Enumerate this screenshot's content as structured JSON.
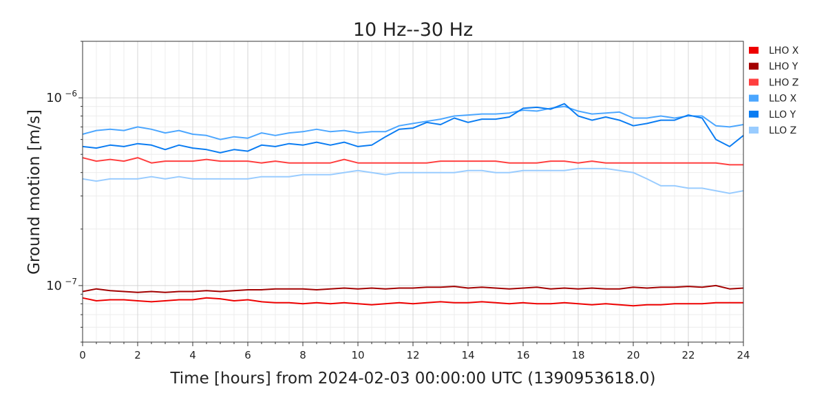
{
  "chart_data": {
    "type": "line",
    "title": "10 Hz--30 Hz",
    "xlabel": "Time [hours] from 2024-02-03 00:00:00 UTC (1390953618.0)",
    "ylabel": "Ground motion [m/s]",
    "xlim": [
      0,
      24
    ],
    "ylim": [
      5e-08,
      2e-06
    ],
    "yscale": "log",
    "grid": true,
    "legend_position": "right",
    "x_ticks": [
      {
        "value": 0,
        "label": "0"
      },
      {
        "value": 2,
        "label": "2"
      },
      {
        "value": 4,
        "label": "4"
      },
      {
        "value": 6,
        "label": "6"
      },
      {
        "value": 8,
        "label": "8"
      },
      {
        "value": 10,
        "label": "10"
      },
      {
        "value": 12,
        "label": "12"
      },
      {
        "value": 14,
        "label": "14"
      },
      {
        "value": 16,
        "label": "16"
      },
      {
        "value": 18,
        "label": "18"
      },
      {
        "value": 20,
        "label": "20"
      },
      {
        "value": 22,
        "label": "22"
      },
      {
        "value": 24,
        "label": "24"
      }
    ],
    "y_ticks": [
      {
        "value": 1e-07,
        "label": "10",
        "exponent": "−7"
      },
      {
        "value": 1e-06,
        "label": "10",
        "exponent": "−6"
      }
    ],
    "series": [
      {
        "name": "LHO X",
        "color": "#ee0000",
        "x": [
          0,
          0.5,
          1,
          1.5,
          2,
          2.5,
          3,
          3.5,
          4,
          4.5,
          5,
          5.5,
          6,
          6.5,
          7,
          7.5,
          8,
          8.5,
          9,
          9.5,
          10,
          10.5,
          11,
          11.5,
          12,
          12.5,
          13,
          13.5,
          14,
          14.5,
          15,
          15.5,
          16,
          16.5,
          17,
          17.5,
          18,
          18.5,
          19,
          19.5,
          20,
          20.5,
          21,
          21.5,
          22,
          22.5,
          23,
          23.5,
          24
        ],
        "y": [
          8.6e-08,
          8.3e-08,
          8.4e-08,
          8.4e-08,
          8.3e-08,
          8.2e-08,
          8.3e-08,
          8.4e-08,
          8.4e-08,
          8.6e-08,
          8.5e-08,
          8.3e-08,
          8.4e-08,
          8.2e-08,
          8.1e-08,
          8.1e-08,
          8e-08,
          8.1e-08,
          8e-08,
          8.1e-08,
          8e-08,
          7.9e-08,
          8e-08,
          8.1e-08,
          8e-08,
          8.1e-08,
          8.2e-08,
          8.1e-08,
          8.1e-08,
          8.2e-08,
          8.1e-08,
          8e-08,
          8.1e-08,
          8e-08,
          8e-08,
          8.1e-08,
          8e-08,
          7.9e-08,
          8e-08,
          7.9e-08,
          7.8e-08,
          7.9e-08,
          7.9e-08,
          8e-08,
          8e-08,
          8e-08,
          8.1e-08,
          8.1e-08,
          8.1e-08
        ]
      },
      {
        "name": "LHO Y",
        "color": "#a30000",
        "x": [
          0,
          0.5,
          1,
          1.5,
          2,
          2.5,
          3,
          3.5,
          4,
          4.5,
          5,
          5.5,
          6,
          6.5,
          7,
          7.5,
          8,
          8.5,
          9,
          9.5,
          10,
          10.5,
          11,
          11.5,
          12,
          12.5,
          13,
          13.5,
          14,
          14.5,
          15,
          15.5,
          16,
          16.5,
          17,
          17.5,
          18,
          18.5,
          19,
          19.5,
          20,
          20.5,
          21,
          21.5,
          22,
          22.5,
          23,
          23.5,
          24
        ],
        "y": [
          9.3e-08,
          9.6e-08,
          9.4e-08,
          9.3e-08,
          9.2e-08,
          9.3e-08,
          9.2e-08,
          9.3e-08,
          9.3e-08,
          9.4e-08,
          9.3e-08,
          9.4e-08,
          9.5e-08,
          9.5e-08,
          9.6e-08,
          9.6e-08,
          9.6e-08,
          9.5e-08,
          9.6e-08,
          9.7e-08,
          9.6e-08,
          9.7e-08,
          9.6e-08,
          9.7e-08,
          9.7e-08,
          9.8e-08,
          9.8e-08,
          9.9e-08,
          9.7e-08,
          9.8e-08,
          9.7e-08,
          9.6e-08,
          9.7e-08,
          9.8e-08,
          9.6e-08,
          9.7e-08,
          9.6e-08,
          9.7e-08,
          9.6e-08,
          9.6e-08,
          9.8e-08,
          9.7e-08,
          9.8e-08,
          9.8e-08,
          9.9e-08,
          9.8e-08,
          1e-07,
          9.6e-08,
          9.7e-08
        ]
      },
      {
        "name": "LHO Z",
        "color": "#ff3f3f",
        "x": [
          0,
          0.5,
          1,
          1.5,
          2,
          2.5,
          3,
          3.5,
          4,
          4.5,
          5,
          5.5,
          6,
          6.5,
          7,
          7.5,
          8,
          8.5,
          9,
          9.5,
          10,
          10.5,
          11,
          11.5,
          12,
          12.5,
          13,
          13.5,
          14,
          14.5,
          15,
          15.5,
          16,
          16.5,
          17,
          17.5,
          18,
          18.5,
          19,
          19.5,
          20,
          20.5,
          21,
          21.5,
          22,
          22.5,
          23,
          23.5,
          24
        ],
        "y": [
          4.8e-07,
          4.6e-07,
          4.7e-07,
          4.6e-07,
          4.8e-07,
          4.5e-07,
          4.6e-07,
          4.6e-07,
          4.6e-07,
          4.7e-07,
          4.6e-07,
          4.6e-07,
          4.6e-07,
          4.5e-07,
          4.6e-07,
          4.5e-07,
          4.5e-07,
          4.5e-07,
          4.5e-07,
          4.7e-07,
          4.5e-07,
          4.5e-07,
          4.5e-07,
          4.5e-07,
          4.5e-07,
          4.5e-07,
          4.6e-07,
          4.6e-07,
          4.6e-07,
          4.6e-07,
          4.6e-07,
          4.5e-07,
          4.5e-07,
          4.5e-07,
          4.6e-07,
          4.6e-07,
          4.5e-07,
          4.6e-07,
          4.5e-07,
          4.5e-07,
          4.5e-07,
          4.5e-07,
          4.5e-07,
          4.5e-07,
          4.5e-07,
          4.5e-07,
          4.5e-07,
          4.4e-07,
          4.4e-07
        ]
      },
      {
        "name": "LLO X",
        "color": "#4ba6ff",
        "x": [
          0,
          0.5,
          1,
          1.5,
          2,
          2.5,
          3,
          3.5,
          4,
          4.5,
          5,
          5.5,
          6,
          6.5,
          7,
          7.5,
          8,
          8.5,
          9,
          9.5,
          10,
          10.5,
          11,
          11.5,
          12,
          12.5,
          13,
          13.5,
          14,
          14.5,
          15,
          15.5,
          16,
          16.5,
          17,
          17.5,
          18,
          18.5,
          19,
          19.5,
          20,
          20.5,
          21,
          21.5,
          22,
          22.5,
          23,
          23.5,
          24
        ],
        "y": [
          6.4e-07,
          6.7e-07,
          6.8e-07,
          6.7e-07,
          7e-07,
          6.8e-07,
          6.5e-07,
          6.7e-07,
          6.4e-07,
          6.3e-07,
          6e-07,
          6.2e-07,
          6.1e-07,
          6.5e-07,
          6.3e-07,
          6.5e-07,
          6.6e-07,
          6.8e-07,
          6.6e-07,
          6.7e-07,
          6.5e-07,
          6.6e-07,
          6.6e-07,
          7.1e-07,
          7.3e-07,
          7.5e-07,
          7.7e-07,
          8e-07,
          8.1e-07,
          8.2e-07,
          8.2e-07,
          8.3e-07,
          8.6e-07,
          8.5e-07,
          8.8e-07,
          9e-07,
          8.5e-07,
          8.2e-07,
          8.3e-07,
          8.4e-07,
          7.8e-07,
          7.8e-07,
          8e-07,
          7.8e-07,
          8e-07,
          8e-07,
          7.1e-07,
          7e-07,
          7.2e-07
        ]
      },
      {
        "name": "LLO Y",
        "color": "#0a7cf2",
        "x": [
          0,
          0.5,
          1,
          1.5,
          2,
          2.5,
          3,
          3.5,
          4,
          4.5,
          5,
          5.5,
          6,
          6.5,
          7,
          7.5,
          8,
          8.5,
          9,
          9.5,
          10,
          10.5,
          11,
          11.5,
          12,
          12.5,
          13,
          13.5,
          14,
          14.5,
          15,
          15.5,
          16,
          16.5,
          17,
          17.5,
          18,
          18.5,
          19,
          19.5,
          20,
          20.5,
          21,
          21.5,
          22,
          22.5,
          23,
          23.5,
          24
        ],
        "y": [
          5.5e-07,
          5.4e-07,
          5.6e-07,
          5.5e-07,
          5.7e-07,
          5.6e-07,
          5.3e-07,
          5.6e-07,
          5.4e-07,
          5.3e-07,
          5.1e-07,
          5.3e-07,
          5.2e-07,
          5.6e-07,
          5.5e-07,
          5.7e-07,
          5.6e-07,
          5.8e-07,
          5.6e-07,
          5.8e-07,
          5.5e-07,
          5.6e-07,
          6.2e-07,
          6.8e-07,
          6.9e-07,
          7.4e-07,
          7.2e-07,
          7.8e-07,
          7.4e-07,
          7.7e-07,
          7.7e-07,
          7.9e-07,
          8.8e-07,
          8.9e-07,
          8.7e-07,
          9.3e-07,
          8e-07,
          7.6e-07,
          7.9e-07,
          7.6e-07,
          7.1e-07,
          7.3e-07,
          7.6e-07,
          7.6e-07,
          8.1e-07,
          7.8e-07,
          6e-07,
          5.5e-07,
          6.3e-07
        ]
      },
      {
        "name": "LLO Z",
        "color": "#99ccff",
        "x": [
          0,
          0.5,
          1,
          1.5,
          2,
          2.5,
          3,
          3.5,
          4,
          4.5,
          5,
          5.5,
          6,
          6.5,
          7,
          7.5,
          8,
          8.5,
          9,
          9.5,
          10,
          10.5,
          11,
          11.5,
          12,
          12.5,
          13,
          13.5,
          14,
          14.5,
          15,
          15.5,
          16,
          16.5,
          17,
          17.5,
          18,
          18.5,
          19,
          19.5,
          20,
          20.5,
          21,
          21.5,
          22,
          22.5,
          23,
          23.5,
          24
        ],
        "y": [
          3.7e-07,
          3.6e-07,
          3.7e-07,
          3.7e-07,
          3.7e-07,
          3.8e-07,
          3.7e-07,
          3.8e-07,
          3.7e-07,
          3.7e-07,
          3.7e-07,
          3.7e-07,
          3.7e-07,
          3.8e-07,
          3.8e-07,
          3.8e-07,
          3.9e-07,
          3.9e-07,
          3.9e-07,
          4e-07,
          4.1e-07,
          4e-07,
          3.9e-07,
          4e-07,
          4e-07,
          4e-07,
          4e-07,
          4e-07,
          4.1e-07,
          4.1e-07,
          4e-07,
          4e-07,
          4.1e-07,
          4.1e-07,
          4.1e-07,
          4.1e-07,
          4.2e-07,
          4.2e-07,
          4.2e-07,
          4.1e-07,
          4e-07,
          3.7e-07,
          3.4e-07,
          3.4e-07,
          3.3e-07,
          3.3e-07,
          3.2e-07,
          3.1e-07,
          3.2e-07
        ]
      }
    ]
  }
}
